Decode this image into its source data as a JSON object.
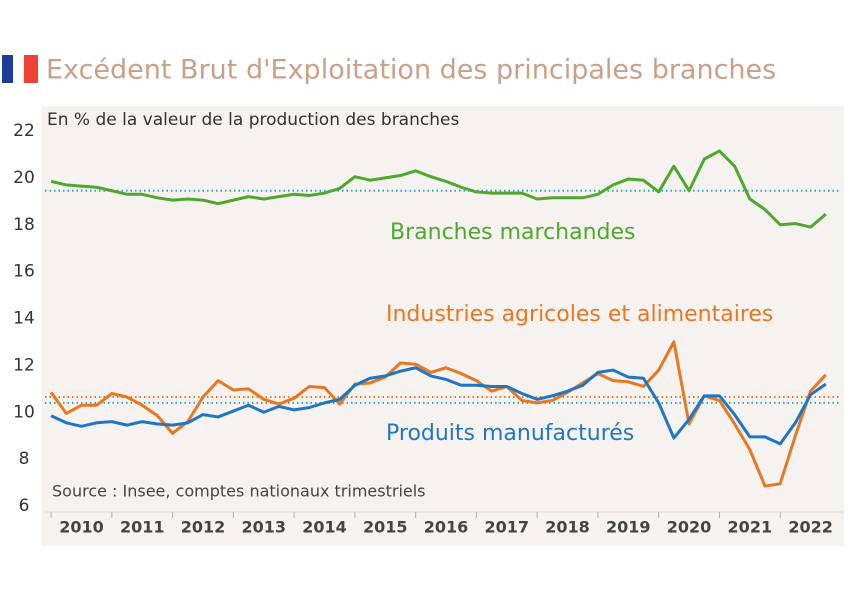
{
  "chart_data": {
    "type": "line",
    "title": "Excédent Brut d'Exploitation des principales branches",
    "subtitle": "En % de la valeur de la production des branches",
    "source": "Source : Insee, comptes nationaux trimestriels",
    "x": [
      2010,
      2010.25,
      2010.5,
      2010.75,
      2011,
      2011.25,
      2011.5,
      2011.75,
      2012,
      2012.25,
      2012.5,
      2012.75,
      2013,
      2013.25,
      2013.5,
      2013.75,
      2014,
      2014.25,
      2014.5,
      2014.75,
      2015,
      2015.25,
      2015.5,
      2015.75,
      2016,
      2016.25,
      2016.5,
      2016.75,
      2017,
      2017.25,
      2017.5,
      2017.75,
      2018,
      2018.25,
      2018.5,
      2018.75,
      2019,
      2019.25,
      2019.5,
      2019.75,
      2020,
      2020.25,
      2020.5,
      2020.75,
      2021,
      2021.25,
      2021.5,
      2021.75,
      2022,
      2022.25,
      2022.5,
      2022.75
    ],
    "series": [
      {
        "name": "Branches marchandes",
        "color": "#4ea72e",
        "values": [
          19.85,
          19.7,
          19.65,
          19.6,
          19.45,
          19.3,
          19.3,
          19.15,
          19.05,
          19.1,
          19.05,
          18.9,
          19.05,
          19.2,
          19.1,
          19.2,
          19.3,
          19.25,
          19.35,
          19.55,
          20.05,
          19.9,
          20.0,
          20.1,
          20.3,
          20.05,
          19.85,
          19.6,
          19.4,
          19.35,
          19.35,
          19.35,
          19.1,
          19.15,
          19.15,
          19.15,
          19.3,
          19.7,
          19.95,
          19.9,
          19.4,
          20.5,
          19.45,
          20.8,
          21.15,
          20.5,
          19.1,
          18.65,
          18.0,
          18.05,
          17.9,
          18.45
        ]
      },
      {
        "name": "Industries agricoles et alimentaires",
        "color": "#e87722",
        "values": [
          10.85,
          9.95,
          10.3,
          10.3,
          10.8,
          10.65,
          10.3,
          9.85,
          9.1,
          9.6,
          10.65,
          11.35,
          10.95,
          11.0,
          10.55,
          10.35,
          10.6,
          11.1,
          11.05,
          10.35,
          11.2,
          11.25,
          11.5,
          12.1,
          12.05,
          11.7,
          11.9,
          11.65,
          11.35,
          10.9,
          11.1,
          10.5,
          10.4,
          10.5,
          10.85,
          11.25,
          11.65,
          11.35,
          11.3,
          11.1,
          11.8,
          13.0,
          9.5,
          10.7,
          10.5,
          9.5,
          8.4,
          6.85,
          6.95,
          9.0,
          10.9,
          11.6
        ]
      },
      {
        "name": "Produits manufacturés",
        "color": "#1f77c4",
        "values": [
          9.85,
          9.55,
          9.4,
          9.55,
          9.6,
          9.45,
          9.6,
          9.5,
          9.45,
          9.55,
          9.9,
          9.8,
          10.05,
          10.3,
          10.0,
          10.25,
          10.1,
          10.2,
          10.4,
          10.55,
          11.15,
          11.45,
          11.55,
          11.75,
          11.9,
          11.55,
          11.4,
          11.15,
          11.15,
          11.1,
          11.1,
          10.8,
          10.55,
          10.7,
          10.9,
          11.15,
          11.7,
          11.8,
          11.5,
          11.45,
          10.4,
          8.9,
          9.7,
          10.7,
          10.7,
          9.9,
          8.95,
          8.95,
          8.65,
          9.55,
          10.75,
          11.2
        ]
      }
    ],
    "reference_lines": [
      {
        "value": 19.45,
        "color": "#2aa6b8"
      },
      {
        "value": 10.65,
        "color": "#e87722"
      },
      {
        "value": 10.4,
        "color": "#2aa6b8"
      }
    ],
    "xlim": [
      2009.9,
      2023.05
    ],
    "xticks": [
      2010,
      2011,
      2012,
      2013,
      2014,
      2015,
      2016,
      2017,
      2018,
      2019,
      2020,
      2021,
      2022
    ],
    "ylim": [
      6,
      22
    ],
    "yticks": [
      6,
      8,
      10,
      12,
      14,
      16,
      18,
      20,
      22
    ]
  }
}
